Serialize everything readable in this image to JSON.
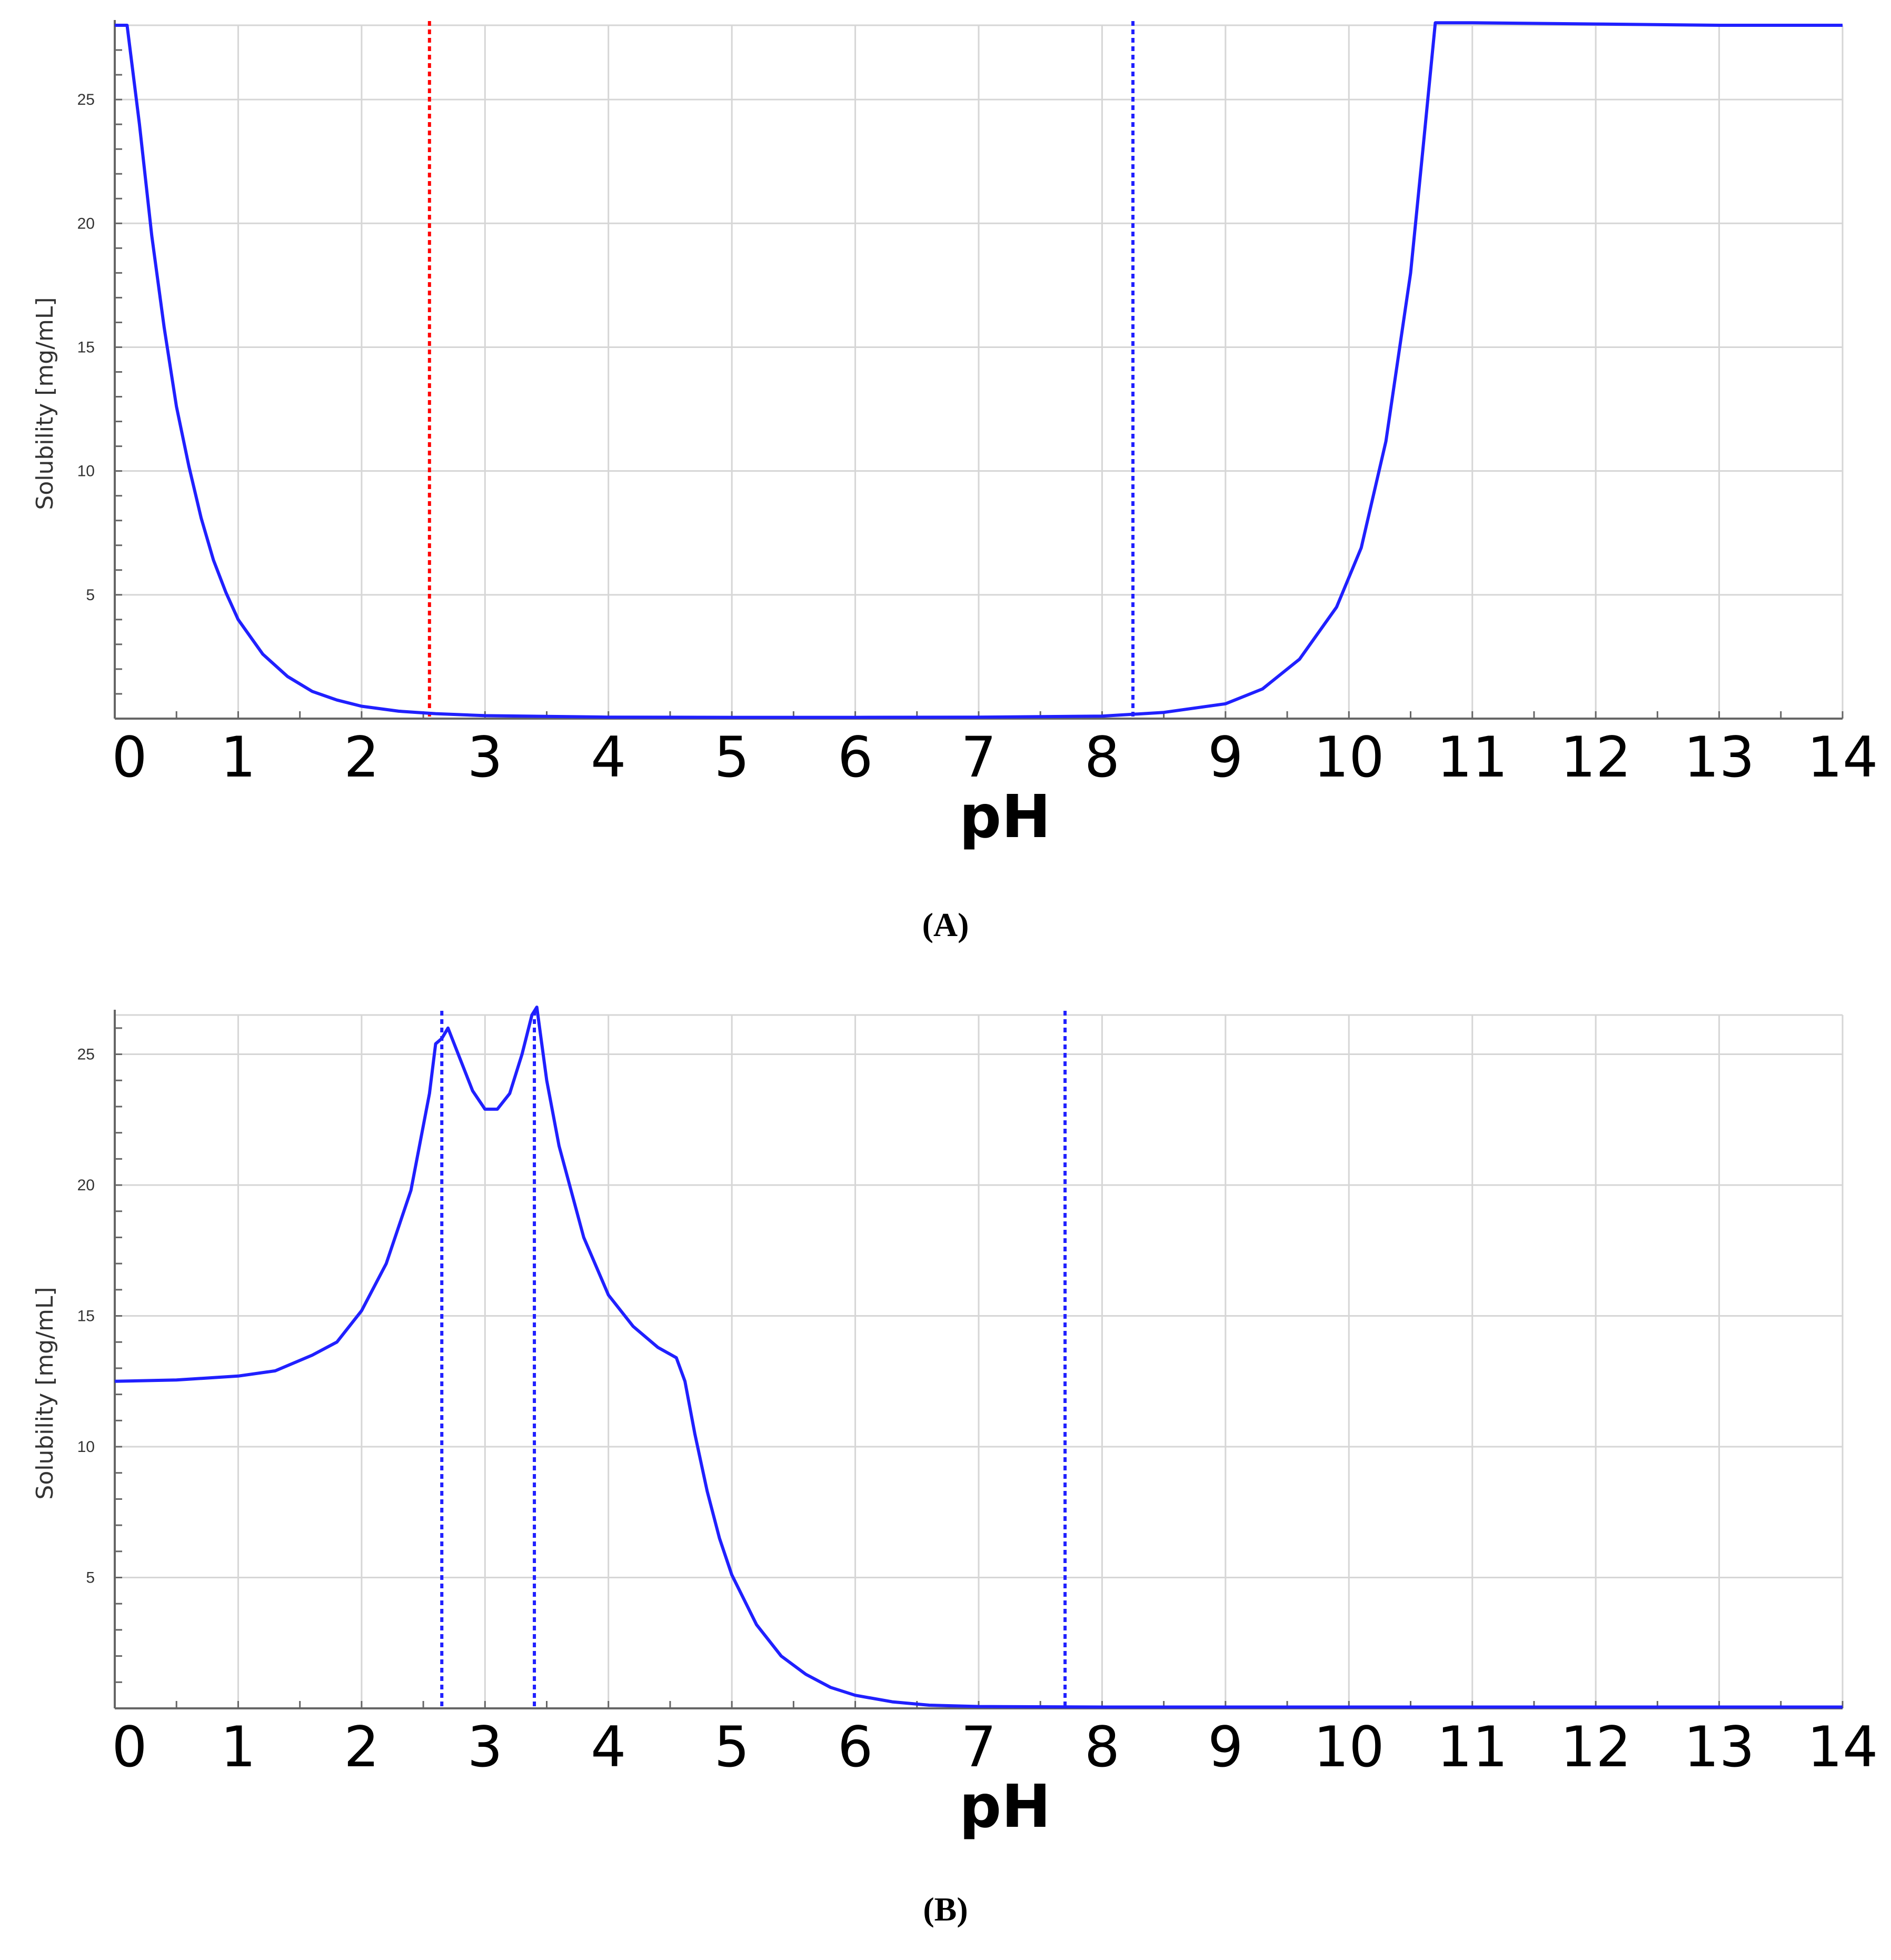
{
  "chart_data": [
    {
      "type": "line",
      "panel_label": "(A)",
      "xlabel": "pH",
      "ylabel": "Solubility [mg/mL]",
      "xlim": [
        0,
        14
      ],
      "ylim": [
        0,
        28
      ],
      "x_ticks": [
        "0",
        "1",
        "2",
        "3",
        "4",
        "5",
        "6",
        "7",
        "8",
        "9",
        "10",
        "11",
        "12",
        "13",
        "14"
      ],
      "y_ticks": [
        "5",
        "10",
        "15",
        "20",
        "25"
      ],
      "grid": true,
      "series": [
        {
          "color": "#2020ff",
          "points": [
            [
              0,
              28
            ],
            [
              0.1,
              28
            ],
            [
              0.2,
              24
            ],
            [
              0.3,
              19.5
            ],
            [
              0.4,
              15.8
            ],
            [
              0.5,
              12.6
            ],
            [
              0.6,
              10.2
            ],
            [
              0.7,
              8.1
            ],
            [
              0.8,
              6.4
            ],
            [
              0.9,
              5.1
            ],
            [
              1.0,
              4.0
            ],
            [
              1.2,
              2.6
            ],
            [
              1.4,
              1.7
            ],
            [
              1.6,
              1.1
            ],
            [
              1.8,
              0.75
            ],
            [
              2.0,
              0.5
            ],
            [
              2.3,
              0.3
            ],
            [
              2.6,
              0.2
            ],
            [
              3.0,
              0.12
            ],
            [
              4.0,
              0.06
            ],
            [
              5.0,
              0.05
            ],
            [
              6.0,
              0.05
            ],
            [
              7.0,
              0.06
            ],
            [
              8.0,
              0.1
            ],
            [
              8.5,
              0.25
            ],
            [
              9.0,
              0.6
            ],
            [
              9.3,
              1.2
            ],
            [
              9.6,
              2.4
            ],
            [
              9.9,
              4.5
            ],
            [
              10.1,
              6.9
            ],
            [
              10.3,
              11.2
            ],
            [
              10.5,
              18.0
            ],
            [
              10.6,
              23.0
            ],
            [
              10.7,
              28.1
            ],
            [
              11,
              28.1
            ],
            [
              12,
              28.05
            ],
            [
              13,
              28
            ],
            [
              14,
              28
            ]
          ]
        }
      ],
      "vlines": [
        {
          "x": 2.55,
          "color": "#ff0000"
        },
        {
          "x": 8.25,
          "color": "#2020ff"
        }
      ]
    },
    {
      "type": "line",
      "panel_label": "(B)",
      "xlabel": "pH",
      "ylabel": "Solubility [mg/mL]",
      "xlim": [
        0,
        14
      ],
      "ylim": [
        0,
        26.5
      ],
      "x_ticks": [
        "0",
        "1",
        "2",
        "3",
        "4",
        "5",
        "6",
        "7",
        "8",
        "9",
        "10",
        "11",
        "12",
        "13",
        "14"
      ],
      "y_ticks": [
        "5",
        "10",
        "15",
        "20",
        "25"
      ],
      "grid": true,
      "series": [
        {
          "color": "#2020ff",
          "points": [
            [
              0,
              12.5
            ],
            [
              0.5,
              12.55
            ],
            [
              1.0,
              12.7
            ],
            [
              1.3,
              12.9
            ],
            [
              1.6,
              13.5
            ],
            [
              1.8,
              14.0
            ],
            [
              2.0,
              15.2
            ],
            [
              2.2,
              17.0
            ],
            [
              2.4,
              19.8
            ],
            [
              2.55,
              23.5
            ],
            [
              2.6,
              25.4
            ],
            [
              2.65,
              25.6
            ],
            [
              2.7,
              26.0
            ],
            [
              2.8,
              24.8
            ],
            [
              2.9,
              23.6
            ],
            [
              3.0,
              22.9
            ],
            [
              3.1,
              22.9
            ],
            [
              3.2,
              23.5
            ],
            [
              3.3,
              25.0
            ],
            [
              3.38,
              26.5
            ],
            [
              3.42,
              26.8
            ],
            [
              3.5,
              24.0
            ],
            [
              3.6,
              21.5
            ],
            [
              3.8,
              18.0
            ],
            [
              4.0,
              15.8
            ],
            [
              4.2,
              14.6
            ],
            [
              4.4,
              13.8
            ],
            [
              4.55,
              13.4
            ],
            [
              4.62,
              12.5
            ],
            [
              4.7,
              10.5
            ],
            [
              4.8,
              8.3
            ],
            [
              4.9,
              6.5
            ],
            [
              5.0,
              5.1
            ],
            [
              5.2,
              3.2
            ],
            [
              5.4,
              2.0
            ],
            [
              5.6,
              1.3
            ],
            [
              5.8,
              0.8
            ],
            [
              6.0,
              0.5
            ],
            [
              6.3,
              0.25
            ],
            [
              6.6,
              0.12
            ],
            [
              7.0,
              0.07
            ],
            [
              8.0,
              0.05
            ],
            [
              10,
              0.05
            ],
            [
              14,
              0.05
            ]
          ]
        }
      ],
      "vlines": [
        {
          "x": 2.65,
          "color": "#2020ff"
        },
        {
          "x": 3.4,
          "color": "#2020ff"
        },
        {
          "x": 7.7,
          "color": "#2020ff"
        }
      ]
    }
  ]
}
